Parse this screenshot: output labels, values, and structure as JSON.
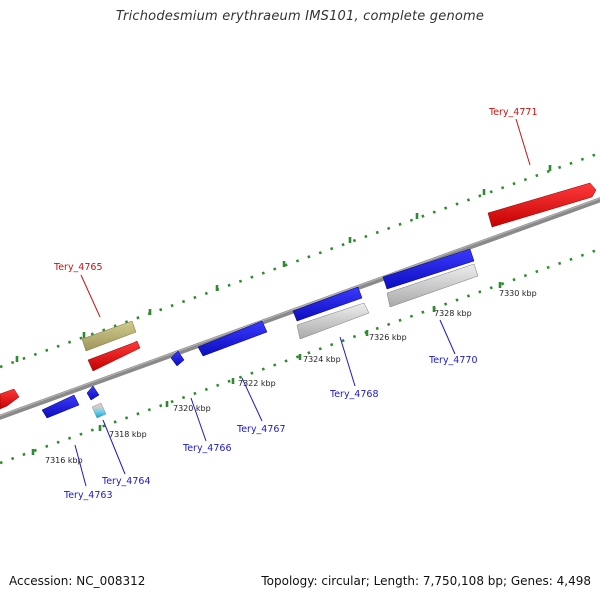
{
  "title": "Trichodesmium erythraeum IMS101, complete genome",
  "footer": {
    "accession": "Accession: NC_008312",
    "summary": "Topology: circular; Length: 7,750,108 bp; Genes: 4,498"
  },
  "colors": {
    "backbone": "#8a8a8a",
    "tick_mark": "#2e8b2e",
    "forward_cds": "#e01010",
    "reverse_cds": "#1515e6",
    "rna": "#bfbfbf",
    "highlight": "#b8b070",
    "label_forward": "#cc1111",
    "label_reverse": "#1a1acc"
  },
  "ticks": [
    {
      "label": "7316 kbp"
    },
    {
      "label": "7318 kbp"
    },
    {
      "label": "7320 kbp"
    },
    {
      "label": "7322 kbp"
    },
    {
      "label": "7324 kbp"
    },
    {
      "label": "7326 kbp"
    },
    {
      "label": "7328 kbp"
    },
    {
      "label": "7330 kbp"
    }
  ],
  "genes": [
    {
      "label": "Tery_4763"
    },
    {
      "label": "Tery_4764"
    },
    {
      "label": "Tery_4765"
    },
    {
      "label": "Tery_4766"
    },
    {
      "label": "Tery_4767"
    },
    {
      "label": "Tery_4768"
    },
    {
      "label": "Tery_4770"
    },
    {
      "label": "Tery_4771"
    }
  ]
}
